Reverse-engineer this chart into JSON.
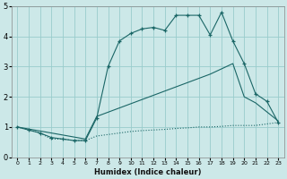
{
  "xlabel": "Humidex (Indice chaleur)",
  "bg_color": "#cce8e8",
  "grid_color": "#99cccc",
  "line_color": "#1a6666",
  "xlim": [
    -0.5,
    23.5
  ],
  "ylim": [
    0,
    5
  ],
  "xticks": [
    0,
    1,
    2,
    3,
    4,
    5,
    6,
    7,
    8,
    9,
    10,
    11,
    12,
    13,
    14,
    15,
    16,
    17,
    18,
    19,
    20,
    21,
    22,
    23
  ],
  "yticks": [
    0,
    1,
    2,
    3,
    4,
    5
  ],
  "series_top_x": [
    0,
    1,
    2,
    3,
    4,
    5,
    6,
    7,
    8,
    9,
    10,
    11,
    12,
    13,
    14,
    15,
    16,
    17,
    18,
    19,
    20,
    21,
    22,
    23
  ],
  "series_top_y": [
    1.0,
    0.9,
    0.8,
    0.65,
    0.6,
    0.55,
    0.55,
    1.3,
    3.0,
    3.85,
    4.1,
    4.25,
    4.3,
    4.2,
    4.7,
    4.7,
    4.7,
    4.05,
    4.8,
    3.85,
    3.1,
    2.1,
    1.85,
    1.15
  ],
  "series_mid_x": [
    0,
    6,
    7,
    17,
    19,
    20,
    21,
    23
  ],
  "series_mid_y": [
    1.0,
    0.6,
    1.35,
    2.75,
    3.1,
    2.0,
    1.8,
    1.2
  ],
  "series_bot_x": [
    0,
    1,
    2,
    3,
    4,
    5,
    6,
    7,
    8,
    9,
    10,
    11,
    12,
    13,
    14,
    15,
    16,
    17,
    18,
    19,
    20,
    21,
    22,
    23
  ],
  "series_bot_y": [
    1.0,
    0.9,
    0.8,
    0.6,
    0.6,
    0.55,
    0.55,
    0.7,
    0.75,
    0.8,
    0.85,
    0.88,
    0.9,
    0.92,
    0.95,
    0.97,
    1.0,
    1.0,
    1.02,
    1.05,
    1.05,
    1.05,
    1.1,
    1.15
  ]
}
